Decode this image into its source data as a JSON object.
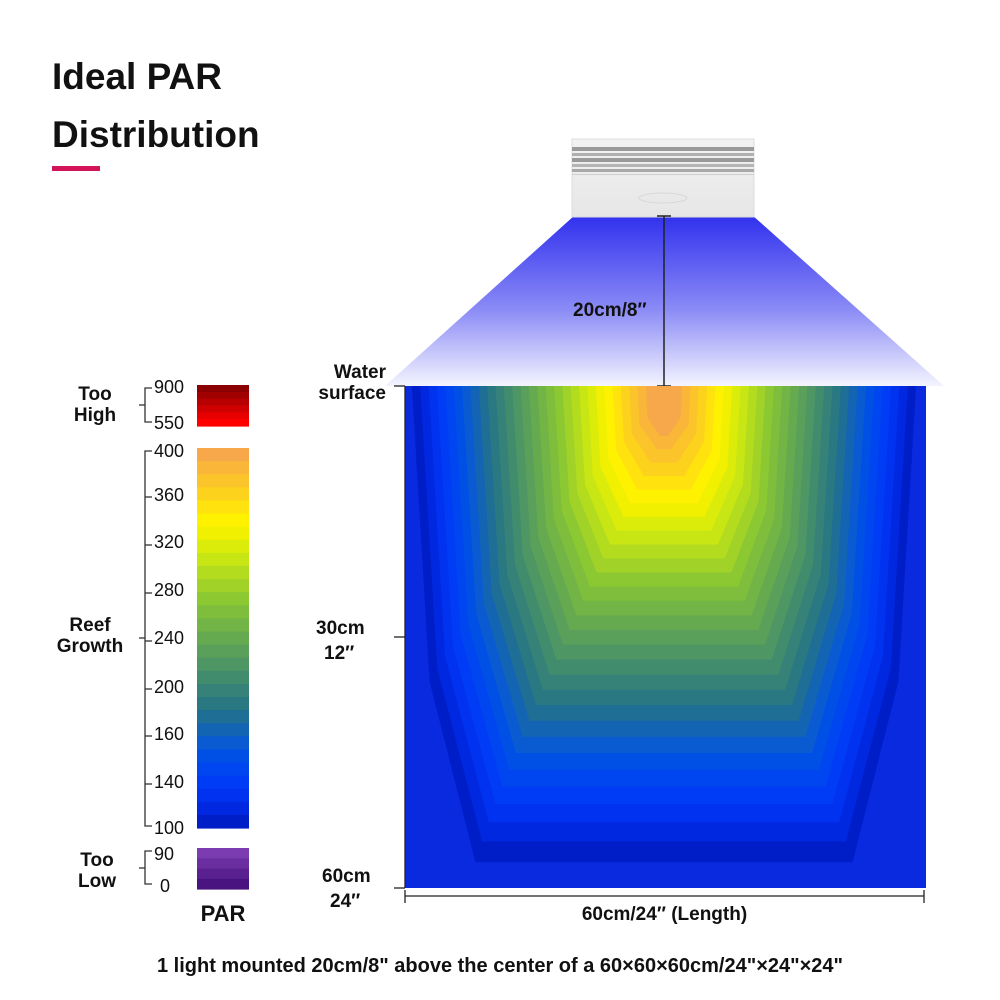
{
  "title": {
    "line1": "Ideal PAR",
    "line2": "Distribution"
  },
  "colors": {
    "accent": "#d4145a",
    "light_beam": "#3a3af0"
  },
  "legend": {
    "unit": "PAR",
    "groups": [
      {
        "label_line1": "Too",
        "label_line2": "High",
        "ticks": [
          "900",
          "550"
        ]
      },
      {
        "label_line1": "Reef",
        "label_line2": "Growth",
        "ticks": [
          "400",
          "360",
          "320",
          "280",
          "240",
          "200",
          "160",
          "140",
          "100"
        ]
      },
      {
        "label_line1": "Too",
        "label_line2": "Low",
        "ticks": [
          "90",
          "0"
        ]
      }
    ],
    "scales": {
      "too_high": [
        "#8b0000",
        "#a00000",
        "#b80000",
        "#d00000",
        "#e80000",
        "#ff0000"
      ],
      "reef": [
        "#f7a84a",
        "#f9b638",
        "#fbc42a",
        "#fdd21c",
        "#ffe20e",
        "#fff200",
        "#f0f000",
        "#dcec0a",
        "#c8e614",
        "#b4dc1e",
        "#a0d228",
        "#8cc832",
        "#7ebe3c",
        "#72b446",
        "#66aa50",
        "#5aa05a",
        "#4e9664",
        "#428c6e",
        "#368278",
        "#2a7882",
        "#1e6e96",
        "#1464b4",
        "#0a5ad2",
        "#0050e6",
        "#0046f0",
        "#003cf5",
        "#0032f0",
        "#0028e0",
        "#001ec8"
      ],
      "too_low": [
        "#7a3cb0",
        "#6a2ea0",
        "#5a2090",
        "#4a1480"
      ]
    }
  },
  "light": {
    "distance_label": "20cm/8″"
  },
  "tank": {
    "water_surface_line1": "Water",
    "water_surface_line2": "surface",
    "mid_depth_line1": "30cm",
    "mid_depth_line2": "12″",
    "bottom_depth_line1": "60cm",
    "bottom_depth_line2": "24″",
    "length_label": "60cm/24″  (Length)"
  },
  "caption": "1 light mounted 20cm/8\" above the center of a 60×60×60cm/24\"×24\"×24\""
}
